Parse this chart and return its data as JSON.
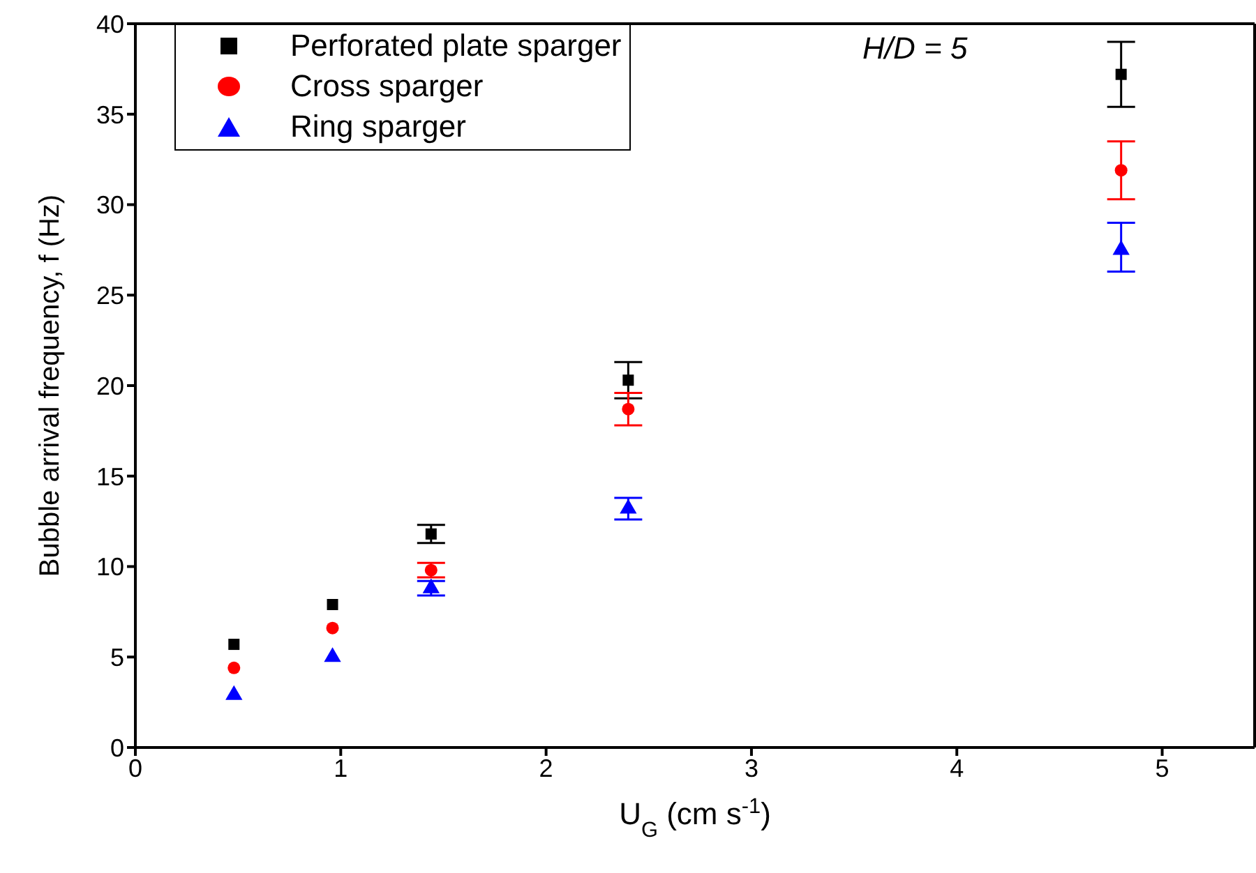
{
  "chart_data": {
    "type": "scatter",
    "xlabel": "U$_{G}$ (cm s$^{-1}$)",
    "ylabel": "Bubble arrival frequency, f (Hz)",
    "annotations": [
      "H/D = 5"
    ],
    "x": [
      0.48,
      0.96,
      1.44,
      2.4,
      4.8
    ],
    "series": [
      {
        "name": "Perforated plate sparger",
        "color": "#000000",
        "marker": "square",
        "values": [
          5.7,
          7.9,
          11.8,
          20.3,
          37.2
        ],
        "errors": [
          null,
          null,
          0.5,
          1.0,
          1.8
        ]
      },
      {
        "name": "Cross sparger",
        "color": "#ff0000",
        "marker": "circle",
        "values": [
          4.4,
          6.6,
          9.8,
          18.7,
          31.9
        ],
        "errors": [
          null,
          null,
          0.4,
          0.9,
          1.6
        ]
      },
      {
        "name": "Ring sparger",
        "color": "#0000ff",
        "marker": "triangle",
        "values": [
          2.9,
          5.0,
          8.8,
          13.2,
          27.5
        ],
        "errors": [
          null,
          null,
          0.4,
          0.6,
          [
            26.3,
            29.0
          ]
        ]
      }
    ],
    "xlim": [
      0,
      5.45
    ],
    "xticks": [
      0,
      1,
      2,
      3,
      4,
      5
    ],
    "ylim": [
      0,
      40
    ],
    "yticks": [
      0,
      5,
      10,
      15,
      20,
      25,
      30,
      35,
      40
    ],
    "grid": false,
    "legend": "top left"
  }
}
